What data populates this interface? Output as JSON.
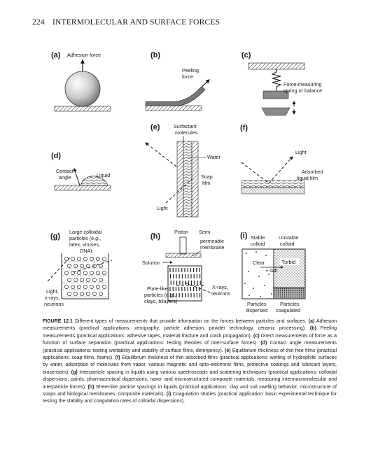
{
  "header": {
    "page_number": "224",
    "running_title": "INTERMOLECULAR AND SURFACE FORCES"
  },
  "figure": {
    "panels": {
      "a": {
        "letter": "(a)",
        "label": "Adhesion force"
      },
      "b": {
        "letter": "(b)",
        "label1": "Peeling",
        "label2": "force"
      },
      "c": {
        "letter": "(c)",
        "label1": "Force-measuring",
        "label2": "spring or balance"
      },
      "d": {
        "letter": "(d)",
        "contact1": "Contact",
        "contact2": "angle",
        "liquid": "Liquid"
      },
      "e": {
        "letter": "(e)",
        "surf1": "Surfactant",
        "surf2": "molecules",
        "water": "Water",
        "soap1": "Soap",
        "soap2": "film",
        "light": "Light"
      },
      "f": {
        "letter": "(f)",
        "light": "Light",
        "ads1": "Adsorbed",
        "ads2": "liquid film"
      },
      "g": {
        "letter": "(g)",
        "l1": "Large colloidal",
        "l2": "particles (e.g.,",
        "l3": "latex, viruses,",
        "l4": "DNA)",
        "r1": "Light,",
        "r2": "x-rays,",
        "r3": "neutrons"
      },
      "h": {
        "letter": "(h)",
        "piston": "Piston",
        "m1": "Semi",
        "m2": "permeable",
        "m3": "membrane",
        "solution": "Solution",
        "p1": "Plate-like",
        "p2": "particles (e.g.,",
        "p3": "clays, bilayers)",
        "x1": "X-rays,",
        "x2": "neutrons"
      },
      "i": {
        "letter": "(i)",
        "s1": "Stable",
        "s2": "colloid",
        "u1": "Unstable",
        "u2": "colloid",
        "clear": "Clear",
        "turbid": "Turbid",
        "salt": "+ salt",
        "d1": "Particles",
        "d2": "dispersed",
        "c1": "Particles",
        "c2": "coagulated"
      }
    }
  },
  "caption": {
    "label": "FIGURE 12.1",
    "intro": "  Different types of measurements that provide information on the forces between particles and surfaces.",
    "a_key": "(a)",
    "a_text": " Adhesion measurements (practical applications: xerography, particle adhesion, powder technology, ceramic processing).",
    "b_key": "(b)",
    "b_text": " Peeling measurements (practical applications: adhesive tapes, material fracture and crack propagation).",
    "c_key": "(c)",
    "c_text": " Direct measurements of force as a function of surface separation (practical applications: testing theories of inter-surface forces).",
    "d_key": "(d)",
    "d_text": " Contact angle measurements (practical applications: testing wettability and stability of surface films, detergency).",
    "e_key": "(e)",
    "e_text": " Equilibrium thickness of thin free films (practical applications: soap films, foams).",
    "f_key": "(f)",
    "f_text": " Equilibrium thickness of thin adsorbed films (practical applications: wetting of hydrophilic surfaces by water, adsorption of molecules from vapor, various magnetic and opto-electronic films, protective coatings and lubricant layers, biosensors).",
    "g_key": "(g)",
    "g_text": " Interparticle spacing in liquids using various spectroscopic and scattering techniques (practical applications: colloidal dispersions, paints, pharmaceutical dispersions, nano- and microstructured composite materials, measuring intermacromolecular and interparticle forces).",
    "h_key": "(h)",
    "h_text": " Sheet-like particle spacings in liquids (practical applications: clay and soil swelling behavior, microstructure of soaps and biological membranes, composite materials).",
    "i_key": "(i)",
    "i_text": " Coagulation studies (practical application: basic experimental technique for testing the stability and coagulation rates of colloidal dispersions)."
  }
}
